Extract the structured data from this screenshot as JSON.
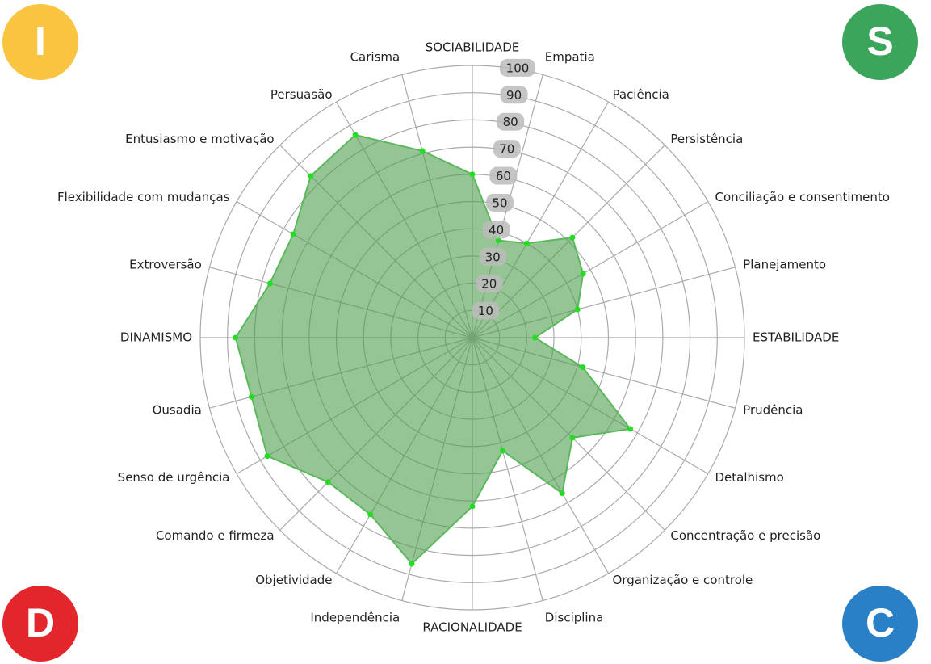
{
  "chart_data": {
    "type": "radar",
    "categories": [
      "SOCIABILIDADE",
      "Empatia",
      "Paciência",
      "Persistência",
      "Conciliação e consentimento",
      "Planejamento",
      "ESTABILIDADE",
      "Prudência",
      "Detalhismo",
      "Concentração e precisão",
      "Organização e controle",
      "Disciplina",
      "RACIONALIDADE",
      "Independência",
      "Objetividade",
      "Comando e firmeza",
      "Senso de urgência",
      "Ousadia",
      "DINAMISMO",
      "Extroversão",
      "Flexibilidade com mudanças",
      "Entusiasmo e motivação",
      "Persuasão",
      "Carisma"
    ],
    "values": [
      60,
      37,
      40,
      52,
      47,
      40,
      23,
      42,
      67,
      52,
      66,
      43,
      62,
      86,
      75,
      75,
      87,
      84,
      87,
      77,
      76,
      84,
      86,
      71
    ],
    "rlim": [
      0,
      100
    ],
    "rticks": [
      10,
      20,
      30,
      40,
      50,
      60,
      70,
      80,
      90,
      100
    ],
    "color": "#4e9f4e",
    "point_color": "#22dd22",
    "grid": true
  },
  "badges": [
    {
      "text": "I",
      "color": "#f9c440"
    },
    {
      "text": "S",
      "color": "#3ba55c"
    },
    {
      "text": "D",
      "color": "#e3262b"
    },
    {
      "text": "C",
      "color": "#2a80c6"
    }
  ]
}
